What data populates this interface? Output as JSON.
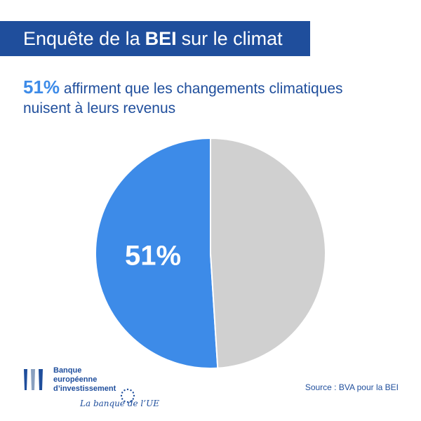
{
  "header": {
    "title_pre": "Enquête de la",
    "title_bold": "BEI",
    "title_post": "sur le climat"
  },
  "headline": {
    "percent": "51%",
    "line1": "affirment que les changements climatiques",
    "line2": "nuisent à leurs revenus"
  },
  "chart_data": {
    "type": "pie",
    "slices": [
      {
        "label": "51%",
        "value": 51,
        "color": "#3d8be8"
      },
      {
        "label": "",
        "value": 49,
        "color": "#d0d0d0"
      }
    ]
  },
  "logo": {
    "line1": "Banque",
    "line2": "européenne",
    "line3": "d’investissement",
    "tagline": "La banque de l’UE"
  },
  "source": "Source : BVA pour la BEI",
  "colors": {
    "brand": "#1f4e9c",
    "accent": "#3d8be8",
    "rest": "#d0d0d0"
  }
}
